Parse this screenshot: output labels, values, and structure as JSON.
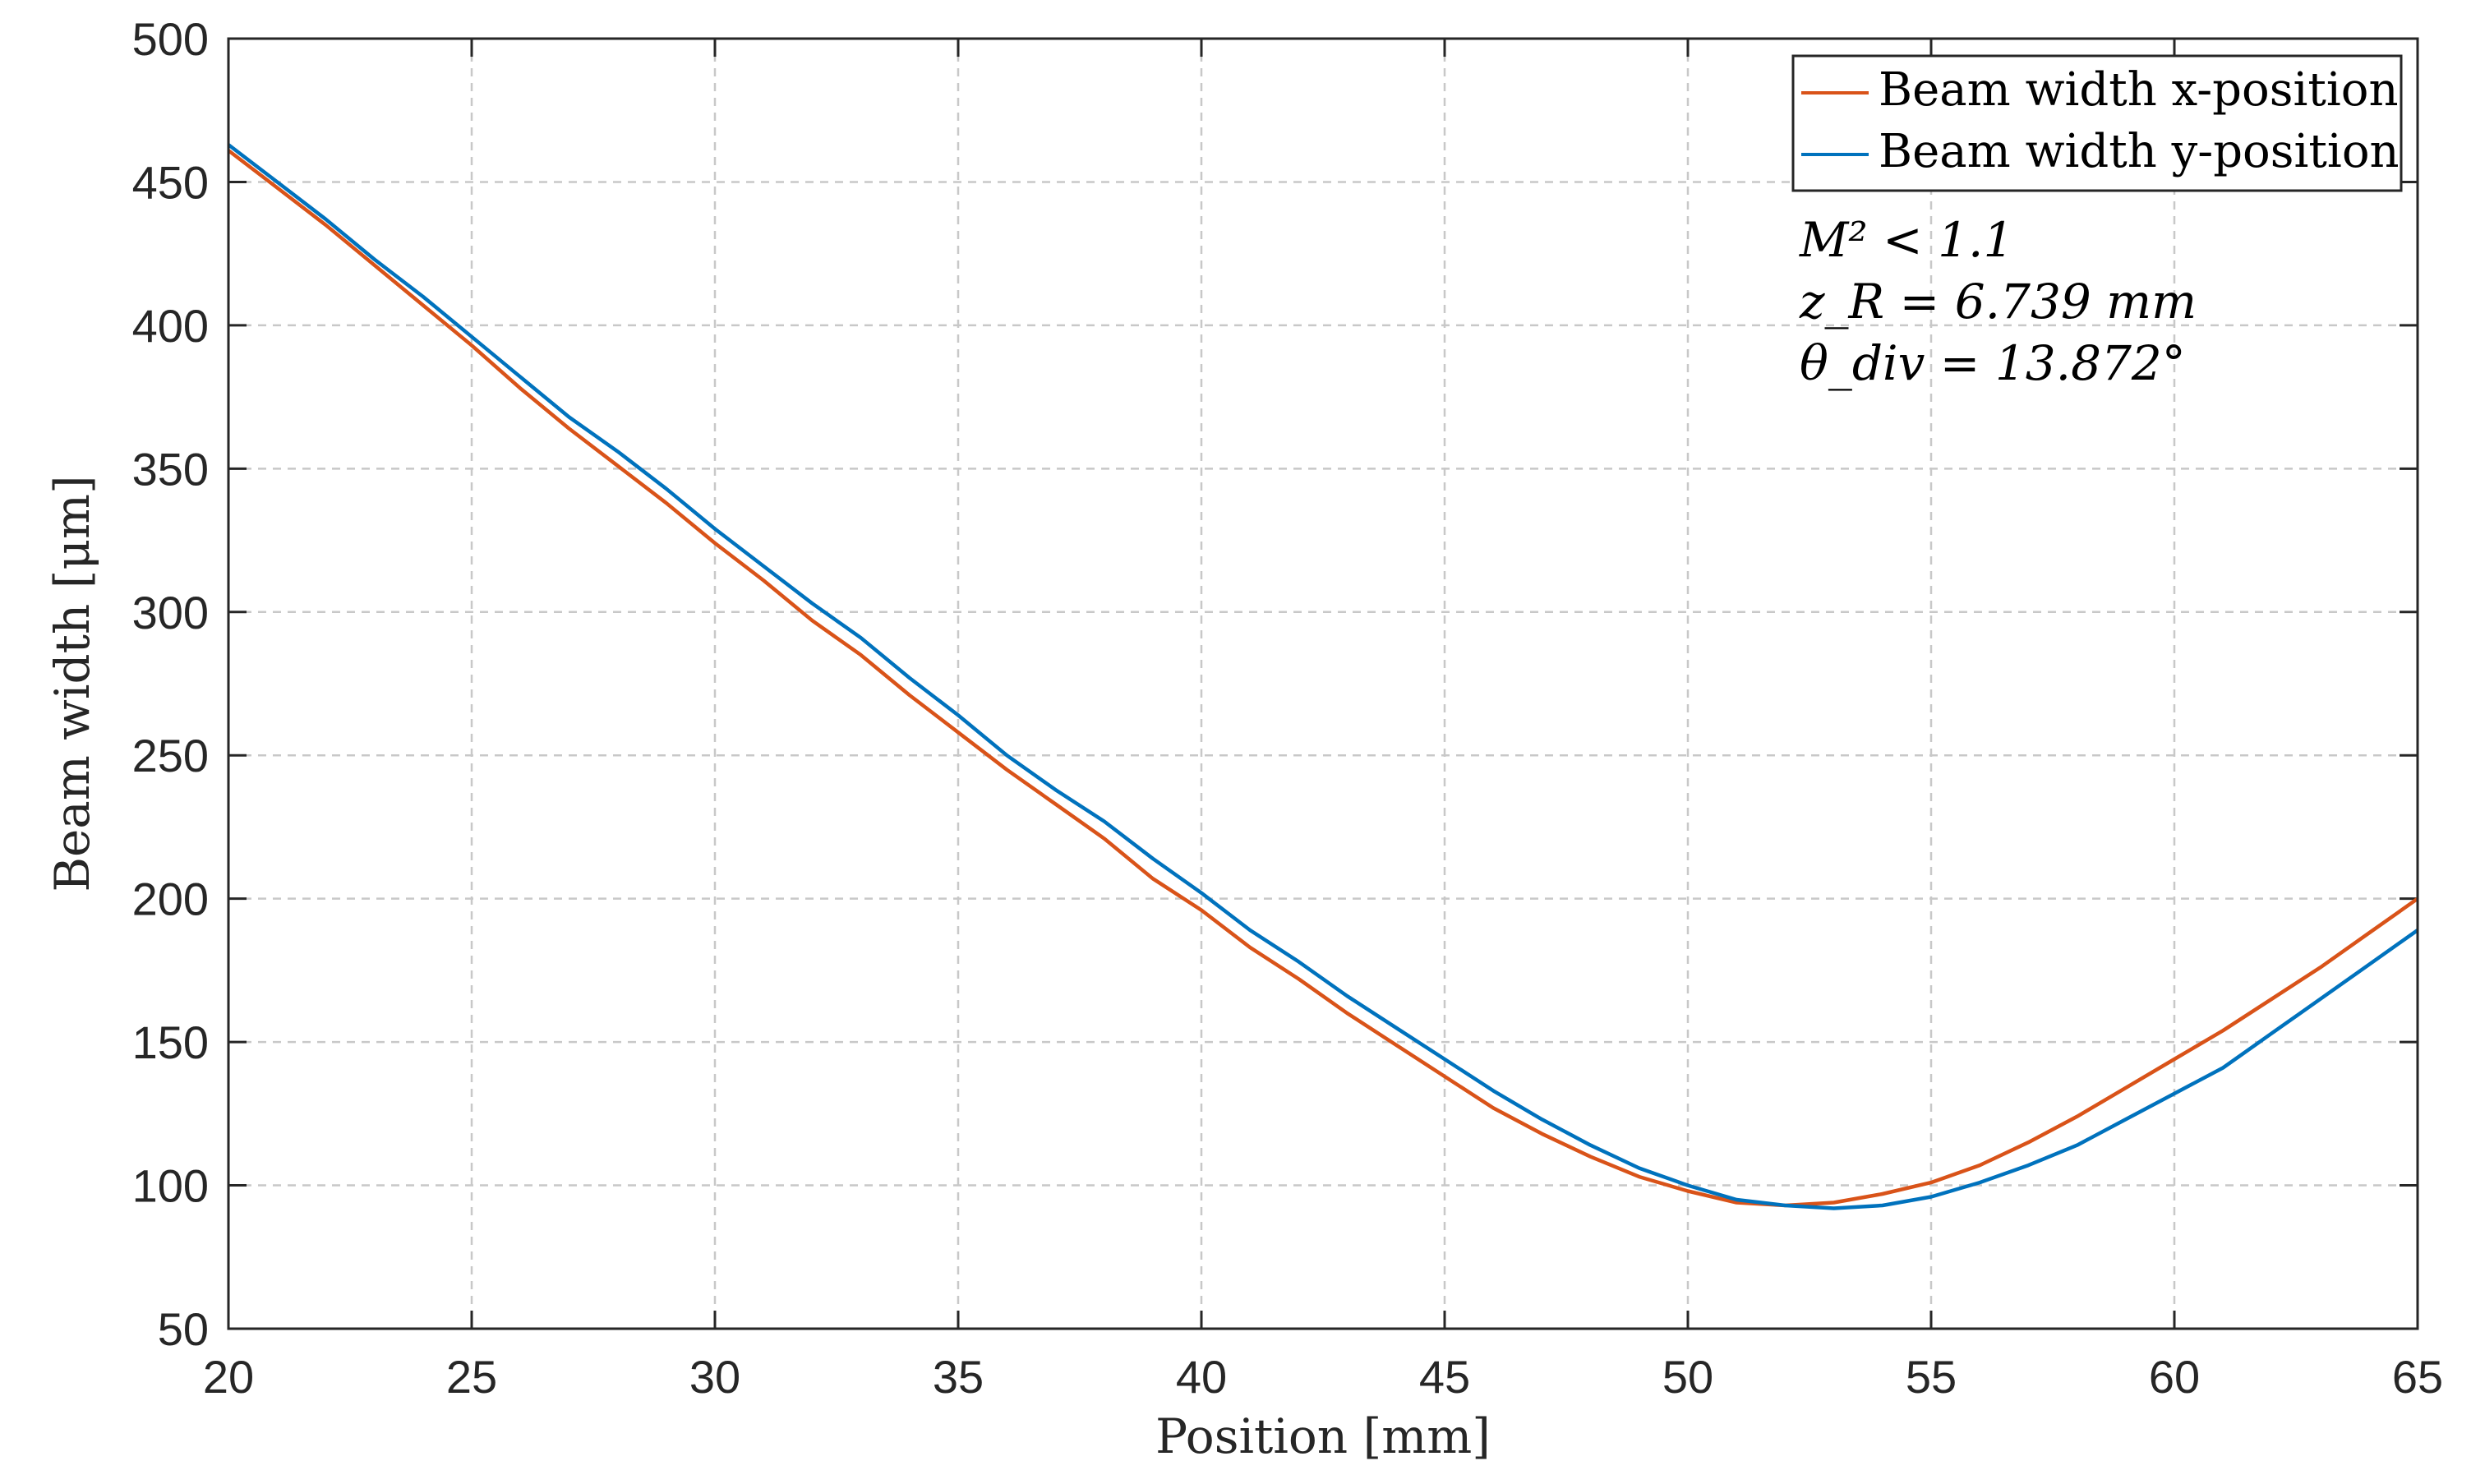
{
  "chart_data": {
    "type": "line",
    "title": "",
    "xlabel": "Position [mm]",
    "ylabel": "Beam width [μm]",
    "xlim": [
      20,
      65
    ],
    "ylim": [
      50,
      500
    ],
    "xticks": [
      "20",
      "25",
      "30",
      "35",
      "40",
      "45",
      "50",
      "55",
      "60",
      "65"
    ],
    "yticks": [
      "50",
      "100",
      "150",
      "200",
      "250",
      "300",
      "350",
      "400",
      "450",
      "500"
    ],
    "grid": true,
    "legend_position": "top-right",
    "series": [
      {
        "name": "Beam width x-position",
        "color": "#D95319",
        "x": [
          20,
          21,
          22,
          23,
          24,
          25,
          26,
          27,
          28,
          29,
          30,
          31,
          32,
          33,
          34,
          35,
          36,
          37,
          38,
          39,
          40,
          41,
          42,
          43,
          44,
          45,
          46,
          47,
          48,
          49,
          50,
          51,
          52,
          53,
          54,
          55,
          56,
          57,
          58,
          59,
          60,
          61,
          62,
          63,
          64,
          65
        ],
        "values": [
          461,
          448,
          435,
          421,
          407,
          393,
          378,
          364,
          351,
          338,
          324,
          311,
          297,
          285,
          271,
          258,
          245,
          233,
          221,
          207,
          196,
          183,
          172,
          160,
          149,
          138,
          127,
          118,
          110,
          103,
          98,
          94,
          93,
          94,
          97,
          101,
          107,
          115,
          124,
          134,
          144,
          154,
          165,
          176,
          188,
          200
        ]
      },
      {
        "name": "Beam width y-position",
        "color": "#0072BD",
        "x": [
          20,
          21,
          22,
          23,
          24,
          25,
          26,
          27,
          28,
          29,
          30,
          31,
          32,
          33,
          34,
          35,
          36,
          37,
          38,
          39,
          40,
          41,
          42,
          43,
          44,
          45,
          46,
          47,
          48,
          49,
          50,
          51,
          52,
          53,
          54,
          55,
          56,
          57,
          58,
          59,
          60,
          61,
          62,
          63,
          64,
          65
        ],
        "values": [
          463,
          450,
          437,
          423,
          410,
          396,
          382,
          368,
          356,
          343,
          329,
          316,
          303,
          291,
          277,
          264,
          250,
          238,
          227,
          214,
          202,
          189,
          178,
          166,
          155,
          144,
          133,
          123,
          114,
          106,
          100,
          95,
          93,
          92,
          93,
          96,
          101,
          107,
          114,
          123,
          132,
          141,
          153,
          165,
          177,
          189
        ]
      }
    ],
    "annotations": [
      {
        "text": "M² < 1.1"
      },
      {
        "text": "z_R = 6.739 mm"
      },
      {
        "text": "θ_div = 13.872°"
      }
    ]
  }
}
